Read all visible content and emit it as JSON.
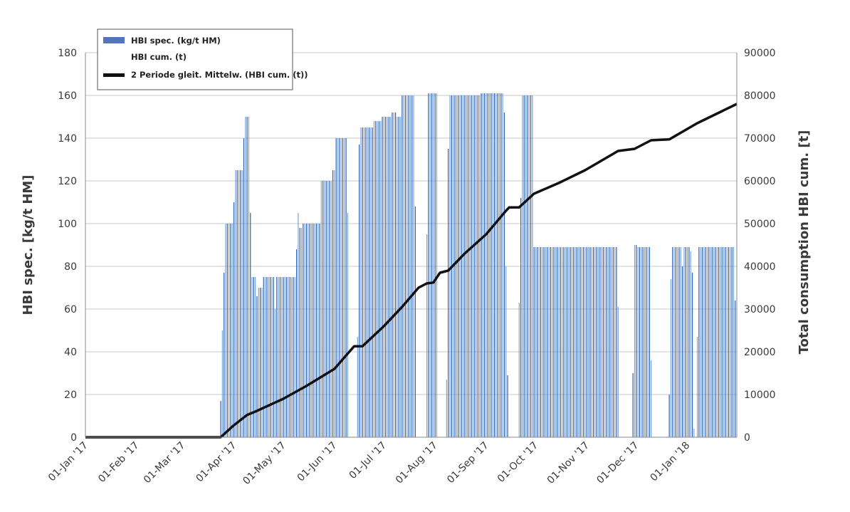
{
  "chart_data": {
    "type": "bar",
    "colors": {
      "bar_dark": "#2f5fb0",
      "bar_light": "#7aa3d8",
      "cum_line": "#111111",
      "grid": "#c8c8c8",
      "axis": "#8a8a8a"
    },
    "y_left": {
      "label": "HBI spec. [kg/t HM]",
      "range": [
        0,
        180
      ],
      "ticks": [
        0,
        20,
        40,
        60,
        80,
        100,
        120,
        140,
        160,
        180
      ]
    },
    "y_right": {
      "label": "Total consumption HBI cum. [t]",
      "range": [
        0,
        90000
      ],
      "ticks": [
        0,
        10000,
        20000,
        30000,
        40000,
        50000,
        60000,
        70000,
        80000,
        90000
      ]
    },
    "x_axis": {
      "range": [
        "2017-01-01",
        "2018-01-31"
      ],
      "tick_dates": [
        "2017-01-01",
        "2017-02-01",
        "2017-03-01",
        "2017-04-01",
        "2017-05-01",
        "2017-06-01",
        "2017-07-01",
        "2017-08-01",
        "2017-09-01",
        "2017-10-01",
        "2017-11-01",
        "2017-12-01",
        "2018-01-01"
      ],
      "tick_labels": [
        "01-Jan '17",
        "01-Feb '17",
        "01-Mar '17",
        "01-Apr '17",
        "01-May '17",
        "01-Jun '17",
        "01-Jul '17",
        "01-Aug '17",
        "01-Sep '17",
        "01-Oct '17",
        "01-Nov '17",
        "01-Dec '17",
        "01-Jan '18"
      ]
    },
    "grid": "horizontal",
    "legend": {
      "placement": "top-left",
      "entries": [
        "HBI spec. (kg/t HM)",
        "HBI cum. (t)",
        "2 Periode gleit. Mittelw. (HBI cum. (t))"
      ]
    },
    "series": [
      {
        "name": "HBI spec. (kg/t HM)",
        "type": "bar",
        "axis": "left",
        "segments": [
          {
            "from": "2017-03-24",
            "to": "2017-03-24",
            "value": 17
          },
          {
            "from": "2017-03-25",
            "to": "2017-03-25",
            "value": 50
          },
          {
            "from": "2017-03-26",
            "to": "2017-03-26",
            "value": 77
          },
          {
            "from": "2017-03-27",
            "to": "2017-03-31",
            "value": 100
          },
          {
            "from": "2017-04-01",
            "to": "2017-04-01",
            "value": 110
          },
          {
            "from": "2017-04-02",
            "to": "2017-04-06",
            "value": 125
          },
          {
            "from": "2017-04-07",
            "to": "2017-04-07",
            "value": 140
          },
          {
            "from": "2017-04-08",
            "to": "2017-04-10",
            "value": 150
          },
          {
            "from": "2017-04-11",
            "to": "2017-04-11",
            "value": 105
          },
          {
            "from": "2017-04-12",
            "to": "2017-04-14",
            "value": 75
          },
          {
            "from": "2017-04-15",
            "to": "2017-04-15",
            "value": 66
          },
          {
            "from": "2017-04-16",
            "to": "2017-04-18",
            "value": 70
          },
          {
            "from": "2017-04-19",
            "to": "2017-04-25",
            "value": 75
          },
          {
            "from": "2017-04-26",
            "to": "2017-04-26",
            "value": 60
          },
          {
            "from": "2017-04-27",
            "to": "2017-05-08",
            "value": 75
          },
          {
            "from": "2017-05-09",
            "to": "2017-05-09",
            "value": 88
          },
          {
            "from": "2017-05-10",
            "to": "2017-05-10",
            "value": 105
          },
          {
            "from": "2017-05-11",
            "to": "2017-05-12",
            "value": 98
          },
          {
            "from": "2017-05-13",
            "to": "2017-05-23",
            "value": 100
          },
          {
            "from": "2017-05-24",
            "to": "2017-05-30",
            "value": 120
          },
          {
            "from": "2017-05-31",
            "to": "2017-06-01",
            "value": 125
          },
          {
            "from": "2017-06-02",
            "to": "2017-06-08",
            "value": 140
          },
          {
            "from": "2017-06-09",
            "to": "2017-06-09",
            "value": 105
          },
          {
            "from": "2017-06-15",
            "to": "2017-06-15",
            "value": 47
          },
          {
            "from": "2017-06-16",
            "to": "2017-06-16",
            "value": 137
          },
          {
            "from": "2017-06-17",
            "to": "2017-06-24",
            "value": 145
          },
          {
            "from": "2017-06-25",
            "to": "2017-06-29",
            "value": 148
          },
          {
            "from": "2017-06-30",
            "to": "2017-07-05",
            "value": 150
          },
          {
            "from": "2017-07-06",
            "to": "2017-07-08",
            "value": 152
          },
          {
            "from": "2017-07-09",
            "to": "2017-07-11",
            "value": 150
          },
          {
            "from": "2017-07-12",
            "to": "2017-07-19",
            "value": 160
          },
          {
            "from": "2017-07-20",
            "to": "2017-07-20",
            "value": 108
          },
          {
            "from": "2017-07-27",
            "to": "2017-07-27",
            "value": 95
          },
          {
            "from": "2017-07-28",
            "to": "2017-08-02",
            "value": 161
          },
          {
            "from": "2017-08-08",
            "to": "2017-08-08",
            "value": 27
          },
          {
            "from": "2017-08-09",
            "to": "2017-08-09",
            "value": 135
          },
          {
            "from": "2017-08-10",
            "to": "2017-08-28",
            "value": 160
          },
          {
            "from": "2017-08-29",
            "to": "2017-09-11",
            "value": 161
          },
          {
            "from": "2017-09-12",
            "to": "2017-09-12",
            "value": 152
          },
          {
            "from": "2017-09-13",
            "to": "2017-09-13",
            "value": 80
          },
          {
            "from": "2017-09-14",
            "to": "2017-09-14",
            "value": 29
          },
          {
            "from": "2017-09-21",
            "to": "2017-09-21",
            "value": 63
          },
          {
            "from": "2017-09-22",
            "to": "2017-09-22",
            "value": 112
          },
          {
            "from": "2017-09-23",
            "to": "2017-09-29",
            "value": 160
          },
          {
            "from": "2017-09-30",
            "to": "2017-11-19",
            "value": 89
          },
          {
            "from": "2017-11-20",
            "to": "2017-11-20",
            "value": 61
          },
          {
            "from": "2017-11-29",
            "to": "2017-11-29",
            "value": 30
          },
          {
            "from": "2017-11-30",
            "to": "2017-12-01",
            "value": 90
          },
          {
            "from": "2017-12-02",
            "to": "2017-12-09",
            "value": 89
          },
          {
            "from": "2017-12-10",
            "to": "2017-12-10",
            "value": 36
          },
          {
            "from": "2017-12-21",
            "to": "2017-12-21",
            "value": 20
          },
          {
            "from": "2017-12-22",
            "to": "2017-12-22",
            "value": 74
          },
          {
            "from": "2017-12-23",
            "to": "2017-12-28",
            "value": 89
          },
          {
            "from": "2017-12-29",
            "to": "2017-12-29",
            "value": 80
          },
          {
            "from": "2017-12-30",
            "to": "2018-01-02",
            "value": 89
          },
          {
            "from": "2018-01-03",
            "to": "2018-01-03",
            "value": 87
          },
          {
            "from": "2018-01-04",
            "to": "2018-01-04",
            "value": 77
          },
          {
            "from": "2018-01-05",
            "to": "2018-01-05",
            "value": 4
          },
          {
            "from": "2018-01-07",
            "to": "2018-01-07",
            "value": 47
          },
          {
            "from": "2018-01-08",
            "to": "2018-01-29",
            "value": 89
          },
          {
            "from": "2018-01-30",
            "to": "2018-01-30",
            "value": 64
          }
        ]
      },
      {
        "name": "2 Periode gleit. Mittelw. (HBI cum. (t))",
        "type": "line",
        "axis": "right",
        "points": [
          [
            "2017-01-01",
            0
          ],
          [
            "2017-03-24",
            0
          ],
          [
            "2017-04-01",
            2800
          ],
          [
            "2017-04-09",
            5200
          ],
          [
            "2017-04-14",
            6000
          ],
          [
            "2017-05-01",
            9000
          ],
          [
            "2017-05-15",
            12000
          ],
          [
            "2017-06-01",
            16000
          ],
          [
            "2017-06-10",
            20000
          ],
          [
            "2017-06-13",
            21300
          ],
          [
            "2017-06-18",
            21300
          ],
          [
            "2017-07-01",
            26000
          ],
          [
            "2017-07-12",
            30500
          ],
          [
            "2017-07-22",
            35000
          ],
          [
            "2017-07-27",
            36000
          ],
          [
            "2017-07-31",
            36200
          ],
          [
            "2017-08-04",
            38500
          ],
          [
            "2017-08-09",
            39000
          ],
          [
            "2017-08-19",
            43000
          ],
          [
            "2017-09-01",
            47500
          ],
          [
            "2017-09-13",
            53000
          ],
          [
            "2017-09-15",
            53800
          ],
          [
            "2017-09-21",
            53800
          ],
          [
            "2017-09-30",
            57000
          ],
          [
            "2017-10-15",
            59500
          ],
          [
            "2017-10-31",
            62500
          ],
          [
            "2017-11-20",
            67000
          ],
          [
            "2017-11-30",
            67500
          ],
          [
            "2017-12-10",
            69500
          ],
          [
            "2017-12-21",
            69700
          ],
          [
            "2018-01-07",
            73500
          ],
          [
            "2018-01-31",
            78000
          ]
        ]
      }
    ]
  }
}
